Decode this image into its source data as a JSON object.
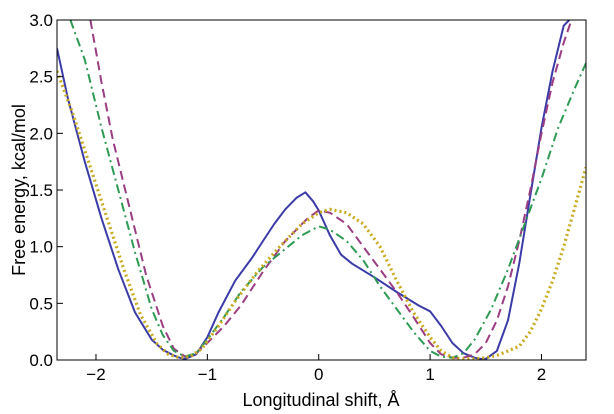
{
  "chart_data": {
    "type": "line",
    "title": "",
    "xlabel": "Longitudinal shift, Å",
    "ylabel": "Free energy, kcal/mol",
    "xlim": [
      -2.35,
      2.4
    ],
    "ylim": [
      0.0,
      3.0
    ],
    "xticks": [
      -2,
      -1,
      0,
      1,
      2
    ],
    "xtick_labels": [
      "−2",
      "−1",
      "0",
      "1",
      "2"
    ],
    "yticks": [
      0.0,
      0.5,
      1.0,
      1.5,
      2.0,
      2.5,
      3.0
    ],
    "ytick_labels": [
      "0.0",
      "0.5",
      "1.0",
      "1.5",
      "2.0",
      "2.5",
      "3.0"
    ],
    "grid": false,
    "legend": false,
    "series": [
      {
        "color": "#3b3ba8",
        "style": "solid",
        "x": [
          -2.35,
          -2.25,
          -2.1,
          -1.95,
          -1.8,
          -1.65,
          -1.5,
          -1.4,
          -1.3,
          -1.25,
          -1.2,
          -1.1,
          -1.0,
          -0.9,
          -0.75,
          -0.6,
          -0.5,
          -0.4,
          -0.3,
          -0.2,
          -0.12,
          -0.05,
          0.0,
          0.1,
          0.2,
          0.3,
          0.5,
          0.7,
          0.9,
          1.0,
          1.1,
          1.2,
          1.3,
          1.4,
          1.45,
          1.5,
          1.6,
          1.7,
          1.8,
          1.9,
          2.0,
          2.1,
          2.2,
          2.25
        ],
        "values": [
          2.75,
          2.3,
          1.75,
          1.25,
          0.8,
          0.42,
          0.18,
          0.09,
          0.04,
          0.02,
          0.01,
          0.05,
          0.2,
          0.42,
          0.7,
          0.9,
          1.05,
          1.2,
          1.33,
          1.43,
          1.48,
          1.4,
          1.32,
          1.1,
          0.93,
          0.85,
          0.73,
          0.6,
          0.48,
          0.43,
          0.3,
          0.15,
          0.06,
          0.02,
          0.01,
          0.01,
          0.08,
          0.35,
          0.85,
          1.45,
          2.05,
          2.55,
          2.95,
          3.0
        ]
      },
      {
        "color": "#9a3d82",
        "style": "dashed",
        "x": [
          -2.05,
          -1.95,
          -1.85,
          -1.7,
          -1.55,
          -1.4,
          -1.3,
          -1.2,
          -1.1,
          -1.0,
          -0.85,
          -0.7,
          -0.5,
          -0.3,
          -0.1,
          0.0,
          0.1,
          0.25,
          0.4,
          0.55,
          0.7,
          0.85,
          1.0,
          1.1,
          1.2,
          1.3,
          1.4,
          1.5,
          1.6,
          1.7,
          1.8,
          1.9,
          2.0,
          2.1,
          2.2,
          2.27
        ],
        "values": [
          3.0,
          2.45,
          1.95,
          1.35,
          0.75,
          0.3,
          0.1,
          0.03,
          0.06,
          0.15,
          0.3,
          0.48,
          0.78,
          1.05,
          1.25,
          1.32,
          1.3,
          1.2,
          1.0,
          0.8,
          0.6,
          0.38,
          0.15,
          0.05,
          0.02,
          0.02,
          0.05,
          0.15,
          0.35,
          0.65,
          1.05,
          1.5,
          2.0,
          2.45,
          2.8,
          3.0
        ]
      },
      {
        "color": "#2e9a54",
        "style": "dashdot",
        "x": [
          -2.23,
          -2.1,
          -1.95,
          -1.8,
          -1.65,
          -1.5,
          -1.4,
          -1.3,
          -1.2,
          -1.1,
          -1.0,
          -0.85,
          -0.7,
          -0.5,
          -0.3,
          -0.15,
          0.0,
          0.1,
          0.25,
          0.4,
          0.55,
          0.7,
          0.85,
          1.0,
          1.1,
          1.2,
          1.3,
          1.4,
          1.55,
          1.7,
          1.85,
          2.0,
          2.15,
          2.3,
          2.4
        ],
        "values": [
          3.0,
          2.65,
          2.05,
          1.5,
          0.95,
          0.45,
          0.22,
          0.08,
          0.03,
          0.06,
          0.18,
          0.38,
          0.6,
          0.82,
          0.98,
          1.1,
          1.18,
          1.15,
          1.05,
          0.88,
          0.65,
          0.45,
          0.25,
          0.08,
          0.03,
          0.02,
          0.06,
          0.18,
          0.45,
          0.8,
          1.2,
          1.6,
          2.05,
          2.4,
          2.62
        ]
      },
      {
        "color": "#c8aa1e",
        "style": "dotted",
        "x": [
          -2.35,
          -2.2,
          -2.05,
          -1.9,
          -1.75,
          -1.6,
          -1.45,
          -1.35,
          -1.25,
          -1.15,
          -1.05,
          -0.9,
          -0.75,
          -0.55,
          -0.35,
          -0.15,
          0.0,
          0.1,
          0.25,
          0.4,
          0.55,
          0.7,
          0.85,
          1.0,
          1.1,
          1.2,
          1.3,
          1.4,
          1.5,
          1.6,
          1.7,
          1.8,
          1.9,
          2.0,
          2.1,
          2.2,
          2.3,
          2.4
        ],
        "values": [
          2.55,
          2.15,
          1.7,
          1.25,
          0.8,
          0.4,
          0.14,
          0.05,
          0.02,
          0.03,
          0.1,
          0.3,
          0.52,
          0.78,
          1.0,
          1.2,
          1.3,
          1.33,
          1.3,
          1.2,
          1.0,
          0.7,
          0.42,
          0.2,
          0.08,
          0.02,
          0.01,
          0.01,
          0.02,
          0.04,
          0.08,
          0.12,
          0.25,
          0.45,
          0.7,
          1.0,
          1.35,
          1.7
        ]
      }
    ]
  }
}
